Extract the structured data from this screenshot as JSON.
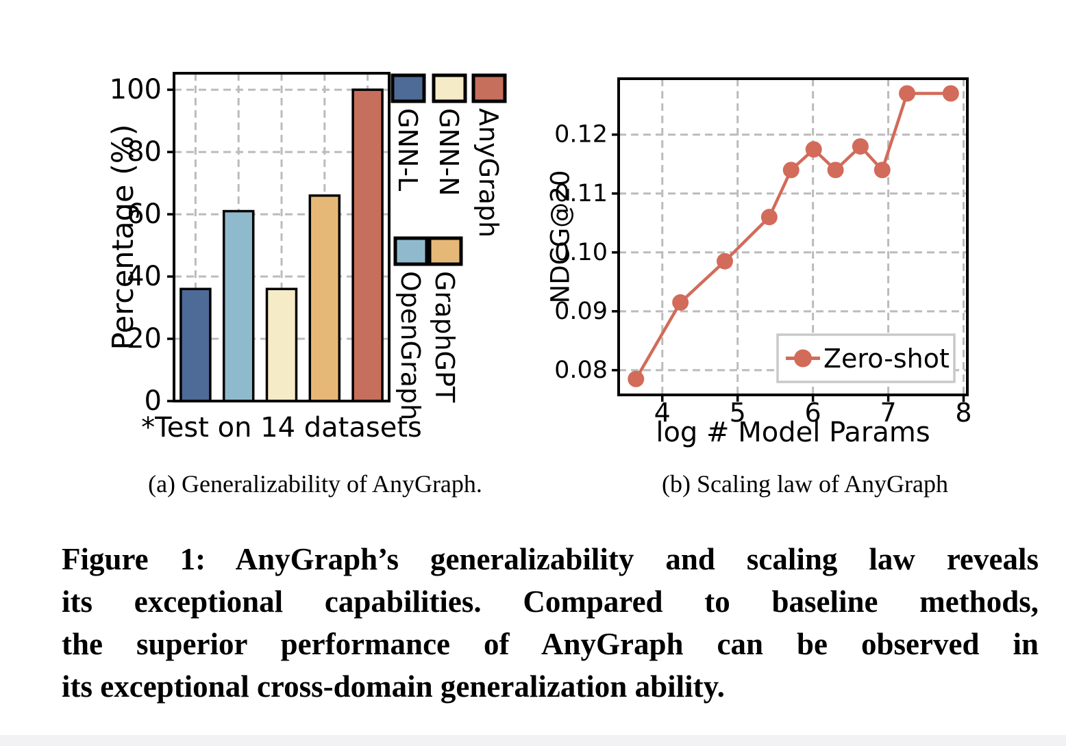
{
  "figure": {
    "subcaption_a": "(a) Generalizability of AnyGraph.",
    "subcaption_b": "(b) Scaling law of AnyGraph",
    "caption_lines": [
      "Figure 1: AnyGraph’s generalizability and scaling law reveals",
      "its exceptional capabilities. Compared to baseline methods,",
      "the superior performance of AnyGraph can be observed in",
      "its exceptional cross-domain generalization ability."
    ]
  },
  "colors": {
    "gnn_l": "#4D6B96",
    "gnn_n": "#F5EBC7",
    "anygraph": "#C66F5D",
    "opengraph": "#8FBACD",
    "graphgpt": "#E6B877",
    "line": "#D26B5A",
    "grid": "#BBBBBB",
    "legend_border": "#C9C9C9"
  },
  "chart_data": [
    {
      "type": "bar",
      "title": "",
      "xlabel": "*Test on 14 datasets",
      "ylabel": "Percentage (%)",
      "categories": [
        "GNN-L",
        "OpenGraph",
        "GNN-N",
        "GraphGPT",
        "AnyGraph"
      ],
      "values": [
        36,
        61,
        36,
        66,
        100
      ],
      "colors": [
        "#4D6B96",
        "#8FBACD",
        "#F5EBC7",
        "#E6B877",
        "#C66F5D"
      ],
      "ylim": [
        0,
        105.3
      ],
      "yticks": [
        0,
        20,
        40,
        60,
        80,
        100
      ],
      "yticklabels": [
        "0",
        "20",
        "40",
        "60",
        "80",
        "100"
      ],
      "grid": true,
      "legend": {
        "position": "right-outside-rotated",
        "rows": [
          [
            {
              "label": "GNN-L",
              "color": "#4D6B96"
            },
            {
              "label": "GNN-N",
              "color": "#F5EBC7"
            },
            {
              "label": "AnyGraph",
              "color": "#C66F5D"
            }
          ],
          [
            {
              "label": "OpenGraph",
              "color": "#8FBACD"
            },
            {
              "label": "GraphGPT",
              "color": "#E6B877"
            }
          ]
        ]
      }
    },
    {
      "type": "line",
      "title": "",
      "xlabel": "log # Model Params",
      "ylabel": "NDCG@20",
      "series": [
        {
          "name": "Zero-shot",
          "color": "#D26B5A",
          "x": [
            3.65,
            4.24,
            4.83,
            5.42,
            5.71,
            6.01,
            6.3,
            6.63,
            6.92,
            7.25,
            7.83
          ],
          "y": [
            0.0785,
            0.0915,
            0.0985,
            0.106,
            0.114,
            0.1175,
            0.114,
            0.118,
            0.114,
            0.127,
            0.127
          ]
        }
      ],
      "xlim": [
        3.42,
        8.05
      ],
      "ylim": [
        0.0758,
        0.1295
      ],
      "xticks": [
        4,
        5,
        6,
        7,
        8
      ],
      "xticklabels": [
        "4",
        "5",
        "6",
        "7",
        "8"
      ],
      "yticks": [
        0.08,
        0.09,
        0.1,
        0.11,
        0.12
      ],
      "yticklabels": [
        "0.08",
        "0.09",
        "0.10",
        "0.11",
        "0.12"
      ],
      "grid": true,
      "legend": {
        "position": "lower-right",
        "label": "Zero-shot"
      }
    }
  ]
}
